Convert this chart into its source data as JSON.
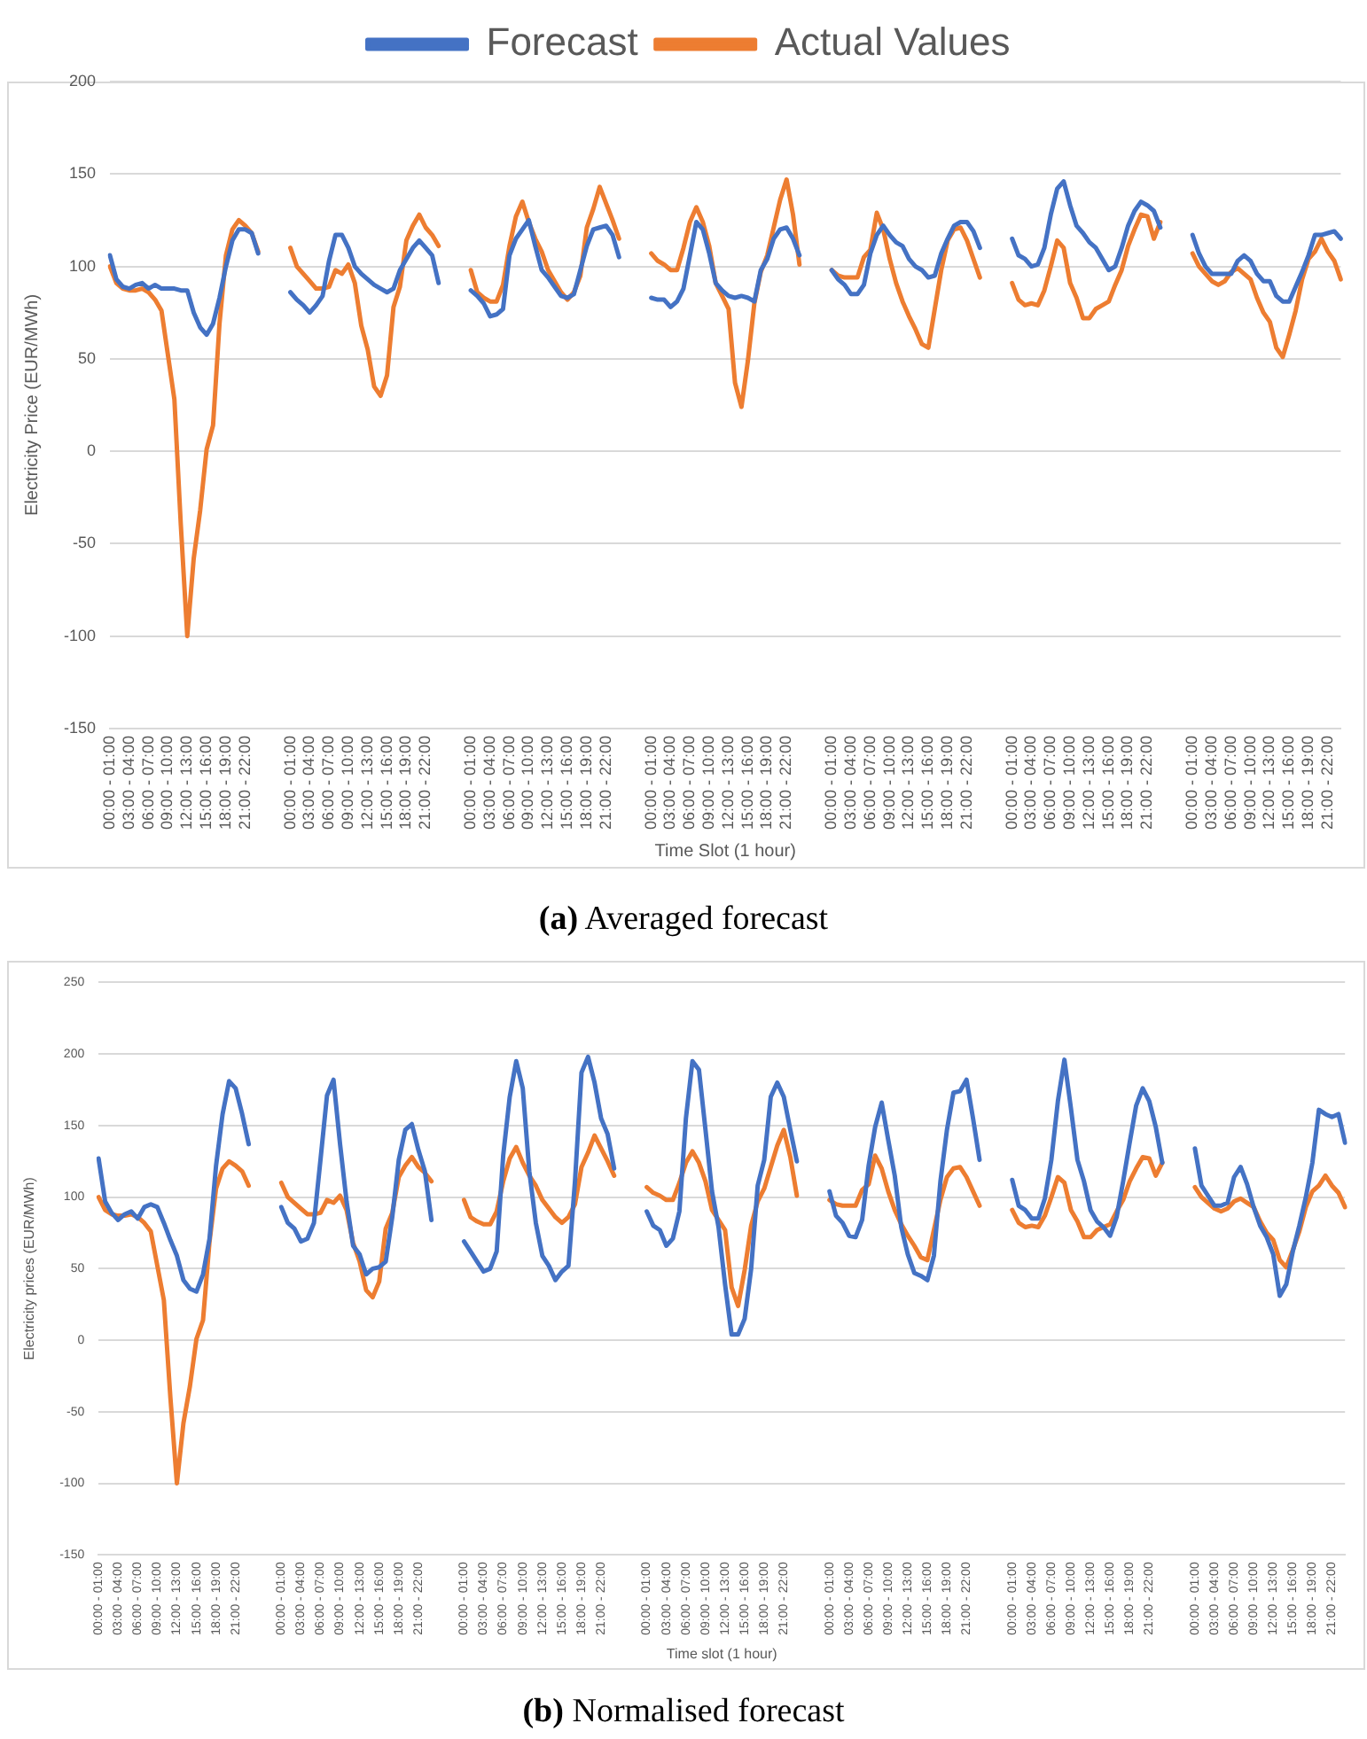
{
  "chart_data": [
    {
      "type": "line",
      "xlabel": "Time Slot (1 hour)",
      "ylabel": "Electricity Price (EUR/MWh)",
      "annotations": [
        "(a) Averaged forecast"
      ],
      "legend": "top",
      "grid": "y",
      "ylim": [
        -150,
        200
      ],
      "yticks": [
        -150,
        -100,
        -50,
        0,
        50,
        100,
        150,
        200
      ],
      "categories": [
        "00:00 - 01:00",
        null,
        null,
        "03:00 - 04:00",
        null,
        null,
        "06:00 - 07:00",
        null,
        null,
        "09:00 - 10:00",
        null,
        null,
        "12:00 - 13:00",
        null,
        null,
        "15:00 - 16:00",
        null,
        null,
        "18:00 - 19:00",
        null,
        null,
        "21:00 - 22:00",
        null,
        null,
        null,
        null,
        null,
        null,
        "00:00 - 01:00",
        null,
        null,
        "03:00 - 04:00",
        null,
        null,
        "06:00 - 07:00",
        null,
        null,
        "09:00 - 10:00",
        null,
        null,
        "12:00 - 13:00",
        null,
        null,
        "15:00 - 16:00",
        null,
        null,
        "18:00 - 19:00",
        null,
        null,
        "21:00 - 22:00",
        null,
        null,
        null,
        null,
        null,
        null,
        "00:00 - 01:00",
        null,
        null,
        "03:00 - 04:00",
        null,
        null,
        "06:00 - 07:00",
        null,
        null,
        "09:00 - 10:00",
        null,
        null,
        "12:00 - 13:00",
        null,
        null,
        "15:00 - 16:00",
        null,
        null,
        "18:00 - 19:00",
        null,
        null,
        "21:00 - 22:00",
        null,
        null,
        null,
        null,
        null,
        null,
        "00:00 - 01:00",
        null,
        null,
        "03:00 - 04:00",
        null,
        null,
        "06:00 - 07:00",
        null,
        null,
        "09:00 - 10:00",
        null,
        null,
        "12:00 - 13:00",
        null,
        null,
        "15:00 - 16:00",
        null,
        null,
        "18:00 - 19:00",
        null,
        null,
        "21:00 - 22:00",
        null,
        null,
        null,
        null,
        null,
        null,
        "00:00 - 01:00",
        null,
        null,
        "03:00 - 04:00",
        null,
        null,
        "06:00 - 07:00",
        null,
        null,
        "09:00 - 10:00",
        null,
        null,
        "12:00 - 13:00",
        null,
        null,
        "15:00 - 16:00",
        null,
        null,
        "18:00 - 19:00",
        null,
        null,
        "21:00 - 22:00",
        null,
        null,
        null,
        null,
        null,
        null,
        "00:00 - 01:00",
        null,
        null,
        "03:00 - 04:00",
        null,
        null,
        "06:00 - 07:00",
        null,
        null,
        "09:00 - 10:00",
        null,
        null,
        "12:00 - 13:00",
        null,
        null,
        "15:00 - 16:00",
        null,
        null,
        "18:00 - 19:00",
        null,
        null,
        "21:00 - 22:00",
        null,
        null,
        null,
        null,
        null,
        null,
        "00:00 - 01:00",
        null,
        null,
        "03:00 - 04:00",
        null,
        null,
        "06:00 - 07:00",
        null,
        null,
        "09:00 - 10:00",
        null,
        null,
        "12:00 - 13:00",
        null,
        null,
        "15:00 - 16:00",
        null,
        null,
        "18:00 - 19:00",
        null,
        null,
        "21:00 - 22:00",
        null,
        null
      ],
      "series": [
        {
          "name": "Forecast",
          "color": "#4472c4",
          "values": [
            106,
            93,
            89,
            88,
            90,
            91,
            88,
            90,
            88,
            88,
            88,
            87,
            87,
            75,
            67,
            63,
            69,
            83,
            100,
            114,
            120,
            120,
            118,
            107,
            null,
            null,
            null,
            null,
            86,
            82,
            79,
            75,
            79,
            84,
            103,
            117,
            117,
            110,
            100,
            96,
            93,
            90,
            88,
            86,
            88,
            98,
            104,
            110,
            114,
            110,
            106,
            91,
            null,
            null,
            null,
            null,
            87,
            84,
            80,
            73,
            74,
            77,
            106,
            115,
            120,
            125,
            111,
            98,
            94,
            89,
            84,
            83,
            85,
            98,
            111,
            120,
            121,
            122,
            117,
            105,
            null,
            null,
            null,
            null,
            83,
            82,
            82,
            78,
            81,
            88,
            106,
            124,
            120,
            107,
            91,
            87,
            84,
            83,
            84,
            83,
            81,
            98,
            104,
            115,
            120,
            121,
            115,
            106,
            null,
            null,
            null,
            null,
            98,
            93,
            90,
            85,
            85,
            90,
            107,
            117,
            122,
            117,
            113,
            111,
            104,
            100,
            98,
            94,
            95,
            107,
            115,
            122,
            124,
            124,
            119,
            110,
            null,
            null,
            null,
            null,
            115,
            106,
            104,
            100,
            101,
            110,
            128,
            142,
            146,
            133,
            122,
            118,
            113,
            110,
            104,
            98,
            100,
            110,
            122,
            130,
            135,
            133,
            130,
            121,
            null,
            null,
            null,
            null,
            117,
            107,
            100,
            96,
            96,
            96,
            96,
            103,
            106,
            103,
            96,
            92,
            92,
            84,
            81,
            81,
            89,
            97,
            106,
            117,
            117,
            118,
            119,
            115
          ]
        },
        {
          "name": "Actual Values",
          "color": "#ed7d31",
          "values": [
            100,
            91,
            88,
            87,
            87,
            88,
            86,
            82,
            76,
            52,
            28,
            -40,
            -100,
            -58,
            -32,
            1,
            14,
            69,
            106,
            120,
            125,
            122,
            118,
            108,
            null,
            null,
            null,
            null,
            110,
            100,
            96,
            92,
            88,
            88,
            89,
            98,
            96,
            101,
            91,
            68,
            55,
            35,
            30,
            41,
            78,
            89,
            114,
            122,
            128,
            121,
            117,
            111,
            null,
            null,
            null,
            null,
            98,
            86,
            83,
            81,
            81,
            90,
            111,
            127,
            135,
            124,
            115,
            108,
            98,
            92,
            86,
            82,
            86,
            95,
            121,
            131,
            143,
            134,
            125,
            115,
            null,
            null,
            null,
            null,
            107,
            103,
            101,
            98,
            98,
            110,
            124,
            132,
            124,
            111,
            91,
            84,
            77,
            37,
            24,
            49,
            80,
            97,
            106,
            121,
            136,
            147,
            128,
            101,
            null,
            null,
            null,
            null,
            98,
            95,
            94,
            94,
            94,
            105,
            109,
            129,
            120,
            104,
            91,
            81,
            73,
            66,
            58,
            56,
            77,
            98,
            114,
            120,
            121,
            114,
            104,
            94,
            null,
            null,
            null,
            null,
            91,
            82,
            79,
            80,
            79,
            87,
            100,
            114,
            110,
            91,
            83,
            72,
            72,
            77,
            79,
            81,
            90,
            98,
            111,
            120,
            128,
            127,
            115,
            124,
            null,
            null,
            null,
            null,
            107,
            100,
            96,
            92,
            90,
            92,
            97,
            99,
            96,
            93,
            83,
            75,
            70,
            56,
            51,
            63,
            76,
            93,
            104,
            108,
            115,
            108,
            103,
            93
          ]
        }
      ]
    },
    {
      "type": "line",
      "xlabel": "Time slot (1 hour)",
      "ylabel": "Electricity prices (EUR/MWh)",
      "annotations": [
        "(b) Normalised forecast"
      ],
      "grid": "y",
      "ylim": [
        -150,
        250
      ],
      "yticks": [
        -150,
        -100,
        -50,
        0,
        50,
        100,
        150,
        200,
        250
      ],
      "categories": [
        "00:00 - 01:00",
        null,
        null,
        "03:00 - 04:00",
        null,
        null,
        "06:00 - 07:00",
        null,
        null,
        "09:00 - 10:00",
        null,
        null,
        "12:00 - 13:00",
        null,
        null,
        "15:00 - 16:00",
        null,
        null,
        "18:00 - 19:00",
        null,
        null,
        "21:00 - 22:00",
        null,
        null,
        null,
        null,
        null,
        null,
        "00:00 - 01:00",
        null,
        null,
        "03:00 - 04:00",
        null,
        null,
        "06:00 - 07:00",
        null,
        null,
        "09:00 - 10:00",
        null,
        null,
        "12:00 - 13:00",
        null,
        null,
        "15:00 - 16:00",
        null,
        null,
        "18:00 - 19:00",
        null,
        null,
        "21:00 - 22:00",
        null,
        null,
        null,
        null,
        null,
        null,
        "00:00 - 01:00",
        null,
        null,
        "03:00 - 04:00",
        null,
        null,
        "06:00 - 07:00",
        null,
        null,
        "09:00 - 10:00",
        null,
        null,
        "12:00 - 13:00",
        null,
        null,
        "15:00 - 16:00",
        null,
        null,
        "18:00 - 19:00",
        null,
        null,
        "21:00 - 22:00",
        null,
        null,
        null,
        null,
        null,
        null,
        "00:00 - 01:00",
        null,
        null,
        "03:00 - 04:00",
        null,
        null,
        "06:00 - 07:00",
        null,
        null,
        "09:00 - 10:00",
        null,
        null,
        "12:00 - 13:00",
        null,
        null,
        "15:00 - 16:00",
        null,
        null,
        "18:00 - 19:00",
        null,
        null,
        "21:00 - 22:00",
        null,
        null,
        null,
        null,
        null,
        null,
        "00:00 - 01:00",
        null,
        null,
        "03:00 - 04:00",
        null,
        null,
        "06:00 - 07:00",
        null,
        null,
        "09:00 - 10:00",
        null,
        null,
        "12:00 - 13:00",
        null,
        null,
        "15:00 - 16:00",
        null,
        null,
        "18:00 - 19:00",
        null,
        null,
        "21:00 - 22:00",
        null,
        null,
        null,
        null,
        null,
        null,
        "00:00 - 01:00",
        null,
        null,
        "03:00 - 04:00",
        null,
        null,
        "06:00 - 07:00",
        null,
        null,
        "09:00 - 10:00",
        null,
        null,
        "12:00 - 13:00",
        null,
        null,
        "15:00 - 16:00",
        null,
        null,
        "18:00 - 19:00",
        null,
        null,
        "21:00 - 22:00",
        null,
        null,
        null,
        null,
        null,
        null,
        "00:00 - 01:00",
        null,
        null,
        "03:00 - 04:00",
        null,
        null,
        "06:00 - 07:00",
        null,
        null,
        "09:00 - 10:00",
        null,
        null,
        "12:00 - 13:00",
        null,
        null,
        "15:00 - 16:00",
        null,
        null,
        "18:00 - 19:00",
        null,
        null,
        "21:00 - 22:00",
        null,
        null
      ],
      "series": [
        {
          "color": "#4472c4",
          "values": [
            127,
            97,
            89,
            84,
            88,
            90,
            85,
            93,
            95,
            93,
            82,
            70,
            59,
            42,
            36,
            34,
            46,
            71,
            122,
            158,
            181,
            176,
            158,
            137,
            null,
            null,
            null,
            null,
            93,
            82,
            78,
            69,
            71,
            82,
            126,
            171,
            182,
            137,
            97,
            66,
            60,
            46,
            50,
            51,
            55,
            86,
            126,
            147,
            151,
            133,
            118,
            84,
            null,
            null,
            null,
            null,
            69,
            62,
            55,
            48,
            50,
            62,
            129,
            170,
            195,
            176,
            118,
            82,
            59,
            52,
            42,
            48,
            52,
            111,
            187,
            198,
            180,
            155,
            144,
            120,
            null,
            null,
            null,
            null,
            90,
            80,
            77,
            66,
            71,
            90,
            155,
            195,
            189,
            147,
            104,
            79,
            39,
            4,
            4,
            15,
            50,
            108,
            126,
            170,
            180,
            170,
            147,
            125,
            null,
            null,
            null,
            null,
            104,
            87,
            82,
            73,
            72,
            84,
            122,
            149,
            166,
            140,
            115,
            79,
            60,
            47,
            45,
            42,
            59,
            111,
            147,
            173,
            174,
            182,
            155,
            126,
            null,
            null,
            null,
            null,
            112,
            94,
            91,
            85,
            85,
            99,
            126,
            167,
            196,
            162,
            126,
            111,
            91,
            83,
            79,
            73,
            86,
            111,
            138,
            164,
            176,
            167,
            149,
            124,
            null,
            null,
            null,
            null,
            134,
            108,
            101,
            94,
            94,
            96,
            114,
            121,
            109,
            93,
            80,
            72,
            60,
            31,
            39,
            62,
            80,
            100,
            124,
            161,
            158,
            156,
            158,
            138
          ]
        },
        {
          "color": "#ed7d31",
          "values": [
            100,
            91,
            88,
            87,
            87,
            88,
            86,
            82,
            76,
            52,
            28,
            -40,
            -100,
            -58,
            -32,
            1,
            14,
            69,
            106,
            120,
            125,
            122,
            118,
            108,
            null,
            null,
            null,
            null,
            110,
            100,
            96,
            92,
            88,
            88,
            89,
            98,
            96,
            101,
            91,
            68,
            55,
            35,
            30,
            41,
            78,
            89,
            114,
            122,
            128,
            121,
            117,
            111,
            null,
            null,
            null,
            null,
            98,
            86,
            83,
            81,
            81,
            90,
            111,
            127,
            135,
            124,
            115,
            108,
            98,
            92,
            86,
            82,
            86,
            95,
            121,
            131,
            143,
            134,
            125,
            115,
            null,
            null,
            null,
            null,
            107,
            103,
            101,
            98,
            98,
            110,
            124,
            132,
            124,
            111,
            91,
            84,
            77,
            37,
            24,
            49,
            80,
            97,
            106,
            121,
            136,
            147,
            128,
            101,
            null,
            null,
            null,
            null,
            98,
            95,
            94,
            94,
            94,
            105,
            109,
            129,
            120,
            104,
            91,
            81,
            73,
            66,
            58,
            56,
            77,
            98,
            114,
            120,
            121,
            114,
            104,
            94,
            null,
            null,
            null,
            null,
            91,
            82,
            79,
            80,
            79,
            87,
            100,
            114,
            110,
            91,
            83,
            72,
            72,
            77,
            79,
            81,
            90,
            98,
            111,
            120,
            128,
            127,
            115,
            124,
            null,
            null,
            null,
            null,
            107,
            100,
            96,
            92,
            90,
            92,
            97,
            99,
            96,
            93,
            83,
            75,
            70,
            56,
            51,
            63,
            76,
            93,
            104,
            108,
            115,
            108,
            103,
            93
          ]
        }
      ]
    }
  ]
}
